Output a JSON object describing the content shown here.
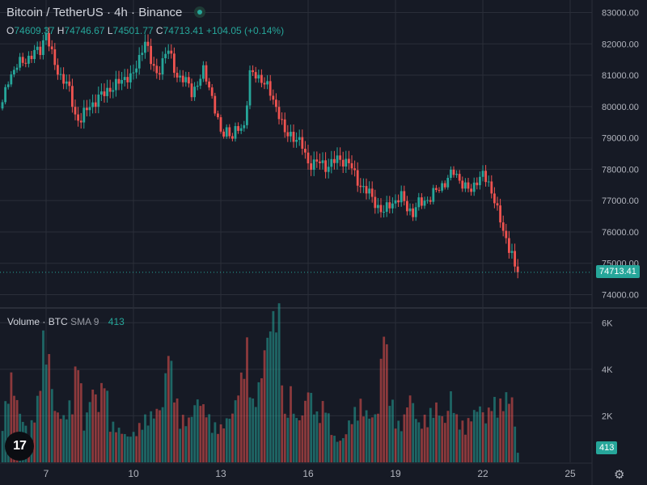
{
  "header": {
    "symbol": "Bitcoin",
    "sep1": "/",
    "quote": "TetherUS",
    "sep2": "·",
    "interval": "4h",
    "sep3": "·",
    "exchange": "Binance"
  },
  "ohlc": {
    "o_label": "O",
    "o_value": "74609.37",
    "h_label": "H",
    "h_value": "74746.67",
    "l_label": "L",
    "l_value": "74501.77",
    "c_label": "C",
    "c_value": "74713.41",
    "change": "+104.05 (+0.14%)"
  },
  "volume_header": {
    "title": "Volume",
    "sep": "·",
    "unit": "BTC",
    "sma": "SMA 9",
    "value": "413"
  },
  "colors": {
    "up": "#26a69a",
    "down": "#ef5350",
    "background": "#161a25",
    "grid": "#2a2e39"
  },
  "icons": {
    "logo": "tradingview-logo",
    "settings": "gear-icon"
  },
  "chart_data": {
    "type": "candlestick",
    "price_axis": {
      "ticks": [
        "83000.00",
        "82000.00",
        "81000.00",
        "80000.00",
        "79000.00",
        "78000.00",
        "77000.00",
        "76000.00",
        "75000.00",
        "74000.00"
      ],
      "range": [
        73600,
        83400
      ],
      "last_price_label": "74713.41",
      "last_price": 74713.41
    },
    "volume_axis": {
      "ticks": [
        "6K",
        "4K",
        "2K"
      ],
      "tick_values": [
        6000,
        4000,
        2000
      ],
      "range": [
        0,
        6600
      ],
      "last_volume_label": "413",
      "last_volume": 413
    },
    "time_axis": {
      "labels": [
        "7",
        "10",
        "13",
        "16",
        "19",
        "22",
        "25"
      ],
      "label_candle_index": [
        15,
        45,
        75,
        105,
        135,
        165,
        195
      ]
    },
    "grid": true,
    "volume_keypoints": [
      [
        0,
        1800,
        0
      ],
      [
        3,
        3600,
        1
      ],
      [
        6,
        2100,
        0
      ],
      [
        9,
        1200,
        1
      ],
      [
        12,
        2600,
        0
      ],
      [
        14,
        5200,
        0
      ],
      [
        16,
        4400,
        1
      ],
      [
        18,
        2200,
        1
      ],
      [
        21,
        1900,
        0
      ],
      [
        24,
        2700,
        1
      ],
      [
        26,
        4800,
        1
      ],
      [
        28,
        1500,
        0
      ],
      [
        31,
        3200,
        1
      ],
      [
        33,
        2400,
        1
      ],
      [
        35,
        3900,
        1
      ],
      [
        37,
        1700,
        1
      ],
      [
        40,
        1400,
        0
      ],
      [
        43,
        1100,
        0
      ],
      [
        46,
        1300,
        1
      ],
      [
        48,
        1800,
        0
      ],
      [
        52,
        2100,
        0
      ],
      [
        55,
        2400,
        0
      ],
      [
        57,
        5000,
        1
      ],
      [
        59,
        3100,
        1
      ],
      [
        61,
        1900,
        0
      ],
      [
        64,
        1800,
        1
      ],
      [
        67,
        2700,
        0
      ],
      [
        70,
        2200,
        1
      ],
      [
        72,
        1600,
        0
      ],
      [
        75,
        1500,
        1
      ],
      [
        79,
        2100,
        1
      ],
      [
        82,
        3600,
        1
      ],
      [
        84,
        4900,
        1
      ],
      [
        86,
        2500,
        0
      ],
      [
        88,
        3200,
        0
      ],
      [
        91,
        5400,
        0
      ],
      [
        93,
        6200,
        0
      ],
      [
        95,
        6300,
        0
      ],
      [
        97,
        1900,
        1
      ],
      [
        99,
        3000,
        1
      ],
      [
        101,
        1800,
        0
      ],
      [
        103,
        2000,
        1
      ],
      [
        105,
        3200,
        1
      ],
      [
        108,
        2000,
        0
      ],
      [
        111,
        2600,
        0
      ],
      [
        113,
        1300,
        1
      ],
      [
        115,
        900,
        0
      ],
      [
        117,
        1000,
        0
      ],
      [
        120,
        2000,
        1
      ],
      [
        123,
        2500,
        1
      ],
      [
        125,
        2100,
        0
      ],
      [
        127,
        1900,
        1
      ],
      [
        129,
        2200,
        1
      ],
      [
        131,
        6200,
        1
      ],
      [
        133,
        3100,
        0
      ],
      [
        135,
        1800,
        1
      ],
      [
        137,
        1500,
        0
      ],
      [
        140,
        2900,
        1
      ],
      [
        143,
        1600,
        0
      ],
      [
        146,
        2000,
        1
      ],
      [
        149,
        2400,
        1
      ],
      [
        152,
        1700,
        1
      ],
      [
        154,
        2900,
        0
      ],
      [
        156,
        1900,
        1
      ],
      [
        159,
        1500,
        1
      ],
      [
        161,
        2000,
        1
      ],
      [
        164,
        2400,
        0
      ],
      [
        166,
        1800,
        0
      ],
      [
        168,
        2600,
        1
      ],
      [
        171,
        2500,
        1
      ],
      [
        173,
        2800,
        0
      ],
      [
        175,
        2700,
        1
      ],
      [
        177,
        413,
        0
      ]
    ],
    "close_keypoints": [
      [
        0,
        80050
      ],
      [
        2,
        80900
      ],
      [
        5,
        81300
      ],
      [
        8,
        81500
      ],
      [
        11,
        81700
      ],
      [
        13,
        81800
      ],
      [
        15,
        82400
      ],
      [
        17,
        81600
      ],
      [
        19,
        81100
      ],
      [
        21,
        80900
      ],
      [
        23,
        80500
      ],
      [
        25,
        79700
      ],
      [
        27,
        79600
      ],
      [
        29,
        79900
      ],
      [
        31,
        80100
      ],
      [
        33,
        80300
      ],
      [
        35,
        80400
      ],
      [
        37,
        80600
      ],
      [
        39,
        80700
      ],
      [
        41,
        80800
      ],
      [
        43,
        81000
      ],
      [
        45,
        81000
      ],
      [
        47,
        81500
      ],
      [
        49,
        82200
      ],
      [
        51,
        81400
      ],
      [
        53,
        81000
      ],
      [
        55,
        81500
      ],
      [
        57,
        81800
      ],
      [
        59,
        81200
      ],
      [
        61,
        80900
      ],
      [
        63,
        80800
      ],
      [
        65,
        80500
      ],
      [
        67,
        80700
      ],
      [
        69,
        81100
      ],
      [
        71,
        80700
      ],
      [
        73,
        79900
      ],
      [
        75,
        79100
      ],
      [
        77,
        79300
      ],
      [
        79,
        79000
      ],
      [
        81,
        79300
      ],
      [
        83,
        79400
      ],
      [
        85,
        81000
      ],
      [
        87,
        81000
      ],
      [
        89,
        80900
      ],
      [
        91,
        80600
      ],
      [
        93,
        80200
      ],
      [
        95,
        79800
      ],
      [
        97,
        79100
      ],
      [
        99,
        79100
      ],
      [
        101,
        79000
      ],
      [
        103,
        78700
      ],
      [
        105,
        78200
      ],
      [
        107,
        78200
      ],
      [
        109,
        78200
      ],
      [
        111,
        78100
      ],
      [
        113,
        78200
      ],
      [
        115,
        78300
      ],
      [
        117,
        78300
      ],
      [
        119,
        78200
      ],
      [
        121,
        77800
      ],
      [
        123,
        77500
      ],
      [
        125,
        77300
      ],
      [
        127,
        77100
      ],
      [
        129,
        76800
      ],
      [
        131,
        76600
      ],
      [
        133,
        76900
      ],
      [
        135,
        77000
      ],
      [
        137,
        77100
      ],
      [
        139,
        76800
      ],
      [
        141,
        76600
      ],
      [
        143,
        76900
      ],
      [
        145,
        77000
      ],
      [
        147,
        77100
      ],
      [
        149,
        77300
      ],
      [
        151,
        77500
      ],
      [
        153,
        77700
      ],
      [
        155,
        77900
      ],
      [
        157,
        77700
      ],
      [
        159,
        77400
      ],
      [
        161,
        77300
      ],
      [
        163,
        77700
      ],
      [
        165,
        77800
      ],
      [
        167,
        77500
      ],
      [
        169,
        77100
      ],
      [
        171,
        76300
      ],
      [
        173,
        75700
      ],
      [
        175,
        75400
      ],
      [
        176,
        74800
      ],
      [
        177,
        74713.41
      ]
    ]
  }
}
